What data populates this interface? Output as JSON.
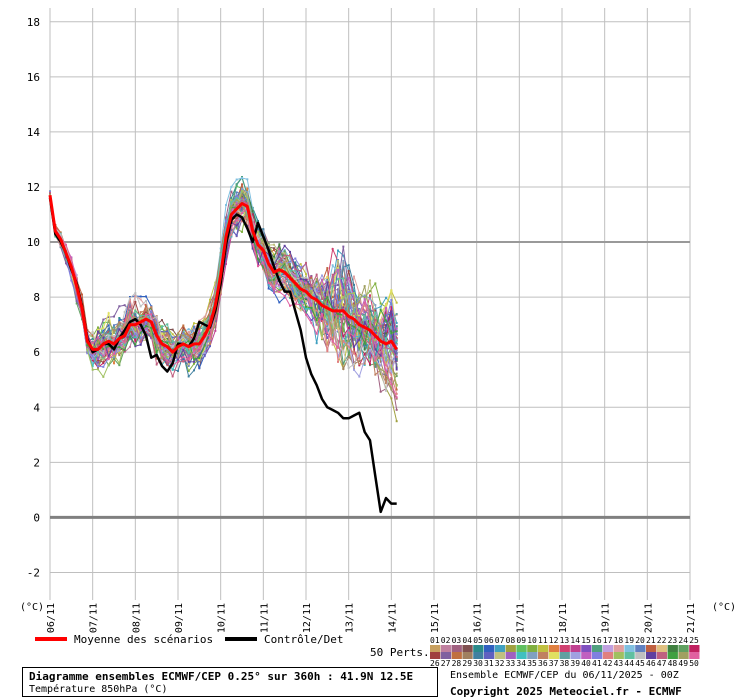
{
  "chart_data": {
    "type": "line",
    "title": "Diagramme ensembles ECMWF/CEP 0.25° sur 360h : 41.9N 12.5E",
    "subtitle": "Température 850hPa (°C)",
    "ylabel_left": "(°C)",
    "ylabel_right": "(°C)",
    "ylim": [
      -3,
      18.5
    ],
    "yticks": [
      -2,
      0,
      2,
      4,
      6,
      8,
      10,
      12,
      14,
      16,
      18
    ],
    "xlim": [
      0,
      15
    ],
    "xticks": [
      {
        "x": 0,
        "label": "06/11"
      },
      {
        "x": 1,
        "label": "07/11"
      },
      {
        "x": 2,
        "label": "08/11"
      },
      {
        "x": 3,
        "label": "09/11"
      },
      {
        "x": 4,
        "label": "10/11"
      },
      {
        "x": 5,
        "label": "11/11"
      },
      {
        "x": 6,
        "label": "12/11"
      },
      {
        "x": 7,
        "label": "13/11"
      },
      {
        "x": 8,
        "label": "14/11"
      },
      {
        "x": 9,
        "label": "15/11"
      },
      {
        "x": 10,
        "label": "16/11"
      },
      {
        "x": 11,
        "label": "17/11"
      },
      {
        "x": 12,
        "label": "18/11"
      },
      {
        "x": 13,
        "label": "19/11"
      },
      {
        "x": 14,
        "label": "20/11"
      },
      {
        "x": 15,
        "label": "21/11"
      }
    ],
    "grid": true,
    "x_step_days": 0.125,
    "series": [
      {
        "name": "Moyenne des scénarios",
        "color": "#ff0000",
        "values": [
          11.7,
          10.4,
          10.1,
          9.6,
          9.1,
          8.4,
          7.6,
          6.4,
          6.1,
          6.1,
          6.3,
          6.4,
          6.3,
          6.5,
          6.6,
          7.0,
          7.0,
          7.1,
          7.2,
          7.1,
          6.6,
          6.3,
          6.2,
          6.0,
          6.2,
          6.3,
          6.2,
          6.3,
          6.3,
          6.6,
          7.0,
          7.7,
          8.8,
          10.2,
          11.0,
          11.2,
          11.4,
          11.3,
          10.4,
          9.9,
          9.7,
          9.2,
          8.9,
          9.0,
          8.9,
          8.7,
          8.5,
          8.3,
          8.2,
          8.0,
          7.9,
          7.7,
          7.6,
          7.5,
          7.5,
          7.5,
          7.3,
          7.2,
          7.0,
          6.9,
          6.8,
          6.6,
          6.4,
          6.3,
          6.4,
          6.1
        ]
      },
      {
        "name": "Contrôle/Det",
        "color": "#000000",
        "values": [
          11.6,
          10.3,
          10.0,
          9.6,
          9.0,
          8.5,
          7.7,
          6.5,
          6.0,
          6.1,
          6.3,
          6.3,
          6.1,
          6.5,
          6.8,
          7.1,
          7.2,
          7.0,
          6.6,
          5.8,
          5.9,
          5.5,
          5.3,
          5.6,
          6.3,
          6.3,
          6.2,
          6.5,
          7.1,
          7.0,
          6.9,
          7.5,
          8.5,
          9.9,
          10.8,
          11.0,
          10.9,
          10.5,
          10.0,
          10.7,
          10.2,
          9.7,
          9.1,
          8.6,
          8.2,
          8.2,
          7.5,
          6.8,
          5.8,
          5.2,
          4.8,
          4.3,
          4.0,
          3.9,
          3.8,
          3.6,
          3.6,
          3.7,
          3.8,
          3.1,
          2.8,
          1.5,
          0.2,
          0.7,
          0.5,
          0.5
        ]
      }
    ],
    "ensemble": {
      "name": "50 Perts.",
      "count": 50
    },
    "legend": [
      {
        "label": "Moyenne des scénarios",
        "color": "#ff0000"
      },
      {
        "label": "Contrôle/Det",
        "color": "#000000"
      }
    ],
    "member_labels_top": [
      "01",
      "02",
      "03",
      "04",
      "05",
      "06",
      "07",
      "08",
      "09",
      "10",
      "11",
      "12",
      "13",
      "14",
      "15",
      "16",
      "17",
      "18",
      "19",
      "20",
      "21",
      "22",
      "23",
      "24",
      "25"
    ],
    "member_labels_bottom": [
      "26",
      "27",
      "28",
      "29",
      "30",
      "31",
      "32",
      "33",
      "34",
      "35",
      "36",
      "37",
      "38",
      "39",
      "40",
      "41",
      "42",
      "43",
      "44",
      "45",
      "46",
      "47",
      "48",
      "49",
      "50"
    ],
    "member_colors": [
      "#c8a060",
      "#c080a0",
      "#a06080",
      "#805050",
      "#2a8a8a",
      "#3060c0",
      "#40a0c0",
      "#a0a040",
      "#60c060",
      "#80b040",
      "#c0c040",
      "#e08040",
      "#d04070",
      "#c04090",
      "#8050c0",
      "#50a080",
      "#c0a0e0",
      "#e0a0a0",
      "#80c0e0",
      "#6080c0",
      "#c06040",
      "#e0c080",
      "#408040",
      "#60a060",
      "#c02060",
      "#a04040",
      "#8060a0",
      "#c07040",
      "#a08060",
      "#4080a0",
      "#6060c0",
      "#c0c080",
      "#a060c0",
      "#40c0c0",
      "#80a0c0",
      "#c08060",
      "#e0e060",
      "#60a0a0",
      "#a0a0e0",
      "#c060c0",
      "#8080e0",
      "#e08080",
      "#a0c060",
      "#60c0a0",
      "#c0c0c0",
      "#6040a0",
      "#c06080",
      "#40a040",
      "#a0a060",
      "#e060a0"
    ]
  },
  "footer": {
    "title": "Diagramme ensembles ECMWF/CEP 0.25° sur 360h : 41.9N 12.5E",
    "subtitle": "Température 850hPa (°C)",
    "info": "Ensemble ECMWF/CEP du 06/11/2025 - 00Z",
    "copyright": "Copyright 2025 Meteociel.fr - ECMWF"
  }
}
